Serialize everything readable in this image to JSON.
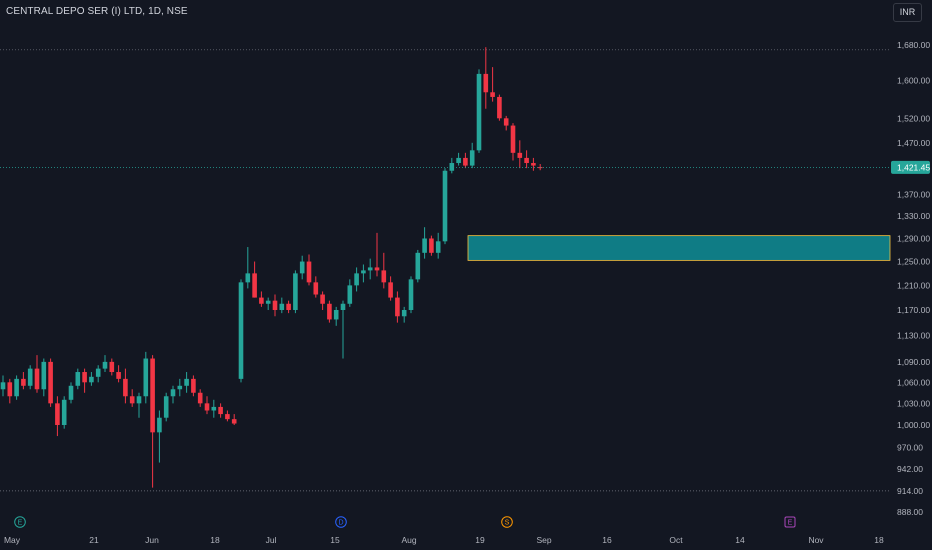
{
  "header": {
    "title": "CENTRAL DEPO SER (I) LTD, 1D, NSE",
    "currency": "INR"
  },
  "colors": {
    "background": "#131722",
    "up": "#26a69a",
    "down": "#f23645",
    "zone_fill": "#0f7c85",
    "zone_border": "#f5c542",
    "text": "#b2b5be",
    "price_line": "#26a69a"
  },
  "price_axis": {
    "ticks": [
      "1,680.00",
      "1,600.00",
      "1,520.00",
      "1,470.00",
      "1,370.00",
      "1,330.00",
      "1,290.00",
      "1,250.00",
      "1,210.00",
      "1,170.00",
      "1,130.00",
      "1,090.00",
      "1,060.00",
      "1,030.00",
      "1,000.00",
      "970.00",
      "942.00",
      "914.00",
      "888.00"
    ],
    "last_price": "1,421.45"
  },
  "time_axis": {
    "labels": [
      "May",
      "21",
      "Jun",
      "18",
      "Jul",
      "15",
      "Aug",
      "19",
      "Sep",
      "16",
      "Oct",
      "14",
      "Nov",
      "18"
    ]
  },
  "events": [
    {
      "icon": "earnings-icon",
      "label": "E",
      "color": "#26a69a"
    },
    {
      "icon": "dividend-icon",
      "label": "D",
      "color": "#2962ff"
    },
    {
      "icon": "split-icon",
      "label": "S",
      "color": "#ff9800"
    },
    {
      "icon": "calendar-event-icon",
      "label": "E",
      "color": "#ab47bc"
    }
  ],
  "chart_data": {
    "type": "candlestick",
    "title": "CENTRAL DEPO SER (I) LTD, 1D, NSE",
    "ylabel": "INR",
    "scale": "log",
    "ylim": [
      880,
      1720
    ],
    "last_price": 1421.45,
    "horizontal_lines": [
      1669,
      914
    ],
    "zone": {
      "low": 1252,
      "high": 1295
    },
    "candles": [
      [
        1050,
        1070,
        1040,
        1060
      ],
      [
        1060,
        1065,
        1030,
        1040
      ],
      [
        1040,
        1070,
        1035,
        1065
      ],
      [
        1065,
        1075,
        1050,
        1055
      ],
      [
        1055,
        1085,
        1050,
        1080
      ],
      [
        1080,
        1100,
        1045,
        1050
      ],
      [
        1050,
        1095,
        1040,
        1090
      ],
      [
        1090,
        1095,
        1025,
        1030
      ],
      [
        1030,
        1040,
        985,
        1000
      ],
      [
        1000,
        1040,
        995,
        1035
      ],
      [
        1035,
        1060,
        1030,
        1055
      ],
      [
        1055,
        1080,
        1050,
        1075
      ],
      [
        1075,
        1080,
        1045,
        1060
      ],
      [
        1060,
        1075,
        1055,
        1068
      ],
      [
        1068,
        1085,
        1060,
        1080
      ],
      [
        1080,
        1100,
        1075,
        1090
      ],
      [
        1090,
        1095,
        1070,
        1075
      ],
      [
        1075,
        1085,
        1060,
        1065
      ],
      [
        1065,
        1080,
        1030,
        1040
      ],
      [
        1040,
        1050,
        1025,
        1030
      ],
      [
        1030,
        1045,
        1010,
        1040
      ],
      [
        1040,
        1105,
        1030,
        1095
      ],
      [
        1095,
        1100,
        918,
        990
      ],
      [
        990,
        1020,
        950,
        1010
      ],
      [
        1010,
        1045,
        1005,
        1040
      ],
      [
        1040,
        1055,
        1030,
        1050
      ],
      [
        1050,
        1065,
        1040,
        1055
      ],
      [
        1055,
        1075,
        1045,
        1065
      ],
      [
        1065,
        1070,
        1040,
        1045
      ],
      [
        1045,
        1050,
        1025,
        1030
      ],
      [
        1030,
        1040,
        1015,
        1020
      ],
      [
        1020,
        1035,
        1010,
        1025
      ],
      [
        1025,
        1030,
        1010,
        1015
      ],
      [
        1015,
        1020,
        1005,
        1008
      ],
      [
        1008,
        1015,
        1000,
        1002
      ],
      [
        1065,
        1220,
        1060,
        1215
      ],
      [
        1215,
        1275,
        1205,
        1230
      ],
      [
        1230,
        1250,
        1190,
        1190
      ],
      [
        1190,
        1200,
        1175,
        1180
      ],
      [
        1180,
        1190,
        1170,
        1185
      ],
      [
        1185,
        1195,
        1160,
        1170
      ],
      [
        1170,
        1190,
        1165,
        1180
      ],
      [
        1180,
        1185,
        1165,
        1170
      ],
      [
        1170,
        1235,
        1165,
        1230
      ],
      [
        1230,
        1260,
        1220,
        1250
      ],
      [
        1250,
        1262,
        1210,
        1215
      ],
      [
        1215,
        1225,
        1190,
        1195
      ],
      [
        1195,
        1200,
        1170,
        1180
      ],
      [
        1180,
        1185,
        1150,
        1155
      ],
      [
        1155,
        1175,
        1145,
        1170
      ],
      [
        1170,
        1185,
        1095,
        1180
      ],
      [
        1180,
        1220,
        1175,
        1210
      ],
      [
        1210,
        1240,
        1200,
        1230
      ],
      [
        1230,
        1245,
        1215,
        1235
      ],
      [
        1235,
        1255,
        1220,
        1240
      ],
      [
        1240,
        1300,
        1225,
        1235
      ],
      [
        1235,
        1265,
        1205,
        1215
      ],
      [
        1215,
        1225,
        1185,
        1190
      ],
      [
        1190,
        1200,
        1150,
        1160
      ],
      [
        1160,
        1175,
        1150,
        1170
      ],
      [
        1170,
        1225,
        1165,
        1220
      ],
      [
        1220,
        1270,
        1215,
        1265
      ],
      [
        1265,
        1310,
        1255,
        1290
      ],
      [
        1290,
        1295,
        1260,
        1265
      ],
      [
        1265,
        1300,
        1255,
        1285
      ],
      [
        1285,
        1420,
        1280,
        1415
      ],
      [
        1415,
        1440,
        1410,
        1430
      ],
      [
        1430,
        1450,
        1425,
        1440
      ],
      [
        1440,
        1450,
        1420,
        1425
      ],
      [
        1425,
        1470,
        1420,
        1455
      ],
      [
        1455,
        1625,
        1450,
        1615
      ],
      [
        1615,
        1675,
        1540,
        1575
      ],
      [
        1575,
        1630,
        1555,
        1565
      ],
      [
        1565,
        1570,
        1515,
        1520
      ],
      [
        1520,
        1525,
        1495,
        1505
      ],
      [
        1505,
        1510,
        1435,
        1450
      ],
      [
        1450,
        1475,
        1420,
        1440
      ],
      [
        1440,
        1455,
        1420,
        1430
      ],
      [
        1430,
        1440,
        1415,
        1425
      ],
      [
        1422,
        1428,
        1416,
        1421.45
      ]
    ]
  }
}
